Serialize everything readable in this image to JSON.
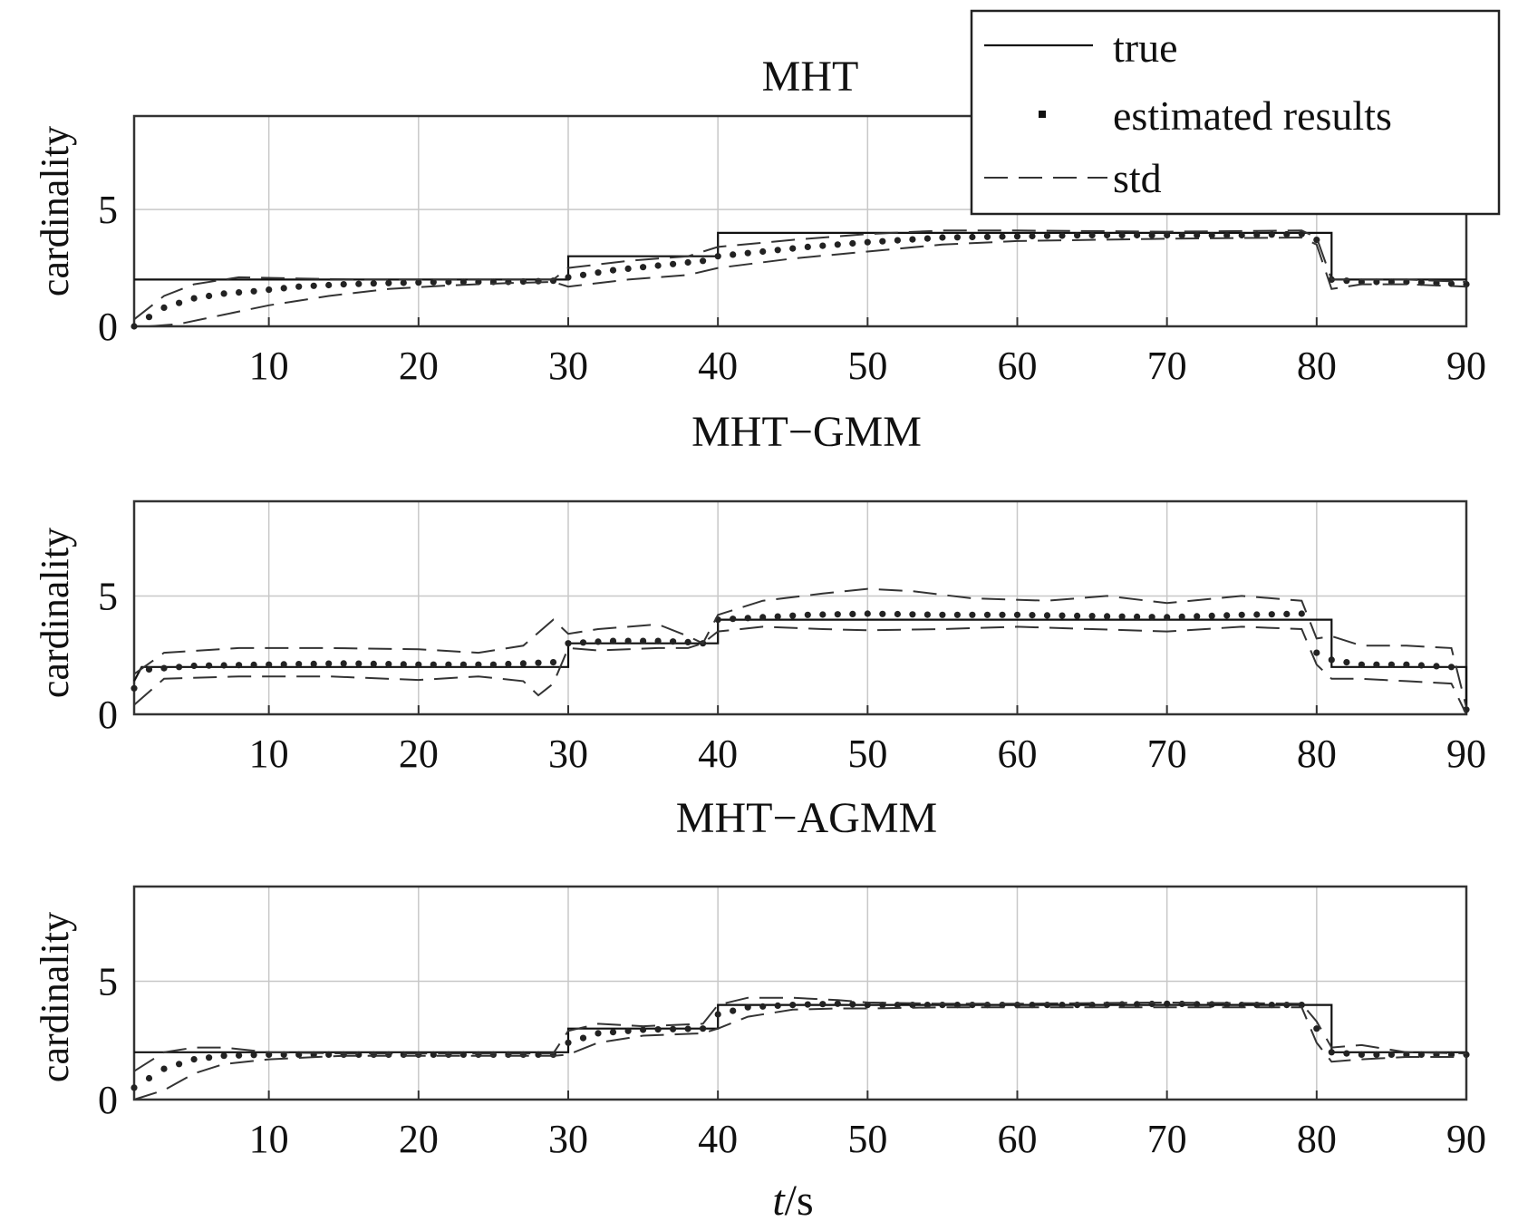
{
  "legend": {
    "items": [
      {
        "label": "true",
        "style": "solid"
      },
      {
        "label": "estimated results",
        "style": "dotted"
      },
      {
        "label": "std",
        "style": "dashed"
      }
    ]
  },
  "colors": {
    "line": "#111111",
    "grid": "#c8c8c8",
    "background": "#ffffff"
  },
  "chart_data": [
    {
      "type": "line",
      "title": "MHT",
      "ylabel": "cardinality",
      "xlabel": "",
      "xlim": [
        1,
        90
      ],
      "ylim": [
        0,
        9
      ],
      "xticks": [
        10,
        20,
        30,
        40,
        50,
        60,
        70,
        80,
        90
      ],
      "yticks": [
        0,
        5
      ],
      "grid": true,
      "series": [
        {
          "name": "true",
          "style": "solid",
          "x": [
            1,
            30,
            30,
            40,
            40,
            81,
            81,
            90
          ],
          "y": [
            2,
            2,
            3,
            3,
            4,
            4,
            2,
            2
          ]
        },
        {
          "name": "estimated results",
          "style": "dotted",
          "x": [
            1,
            3,
            5,
            7,
            9,
            12,
            15,
            18,
            22,
            26,
            29,
            30,
            33,
            36,
            39,
            40,
            43,
            46,
            50,
            55,
            60,
            65,
            70,
            75,
            79,
            80,
            81,
            83,
            86,
            90
          ],
          "y": [
            0,
            0.8,
            1.2,
            1.4,
            1.5,
            1.7,
            1.8,
            1.85,
            1.9,
            1.9,
            1.95,
            2.1,
            2.4,
            2.6,
            2.8,
            3.0,
            3.2,
            3.4,
            3.6,
            3.8,
            3.85,
            3.9,
            3.9,
            3.9,
            3.95,
            3.7,
            2.0,
            1.9,
            1.9,
            1.8
          ]
        },
        {
          "name": "std upper",
          "style": "dashed",
          "x": [
            1,
            3,
            5,
            8,
            12,
            16,
            20,
            25,
            29,
            30,
            34,
            38,
            40,
            45,
            50,
            55,
            60,
            70,
            79,
            80,
            81,
            83,
            86,
            90
          ],
          "y": [
            0.3,
            1.3,
            1.8,
            2.1,
            2.05,
            2.0,
            2.0,
            2.0,
            2.0,
            2.5,
            2.8,
            3.0,
            3.4,
            3.7,
            3.95,
            4.1,
            4.1,
            4.05,
            4.1,
            3.8,
            2.0,
            2.0,
            2.0,
            1.9
          ]
        },
        {
          "name": "std lower",
          "style": "dashed",
          "x": [
            2,
            4,
            7,
            10,
            14,
            18,
            22,
            26,
            29,
            30,
            34,
            38,
            40,
            45,
            50,
            55,
            60,
            70,
            79,
            80,
            81,
            83,
            86,
            90
          ],
          "y": [
            0,
            0.1,
            0.5,
            0.9,
            1.3,
            1.6,
            1.75,
            1.85,
            1.9,
            1.7,
            2.0,
            2.2,
            2.5,
            2.9,
            3.2,
            3.5,
            3.65,
            3.75,
            3.8,
            3.5,
            1.6,
            1.8,
            1.8,
            1.7
          ]
        }
      ]
    },
    {
      "type": "line",
      "title": "MHT−GMM",
      "ylabel": "cardinality",
      "xlabel": "",
      "xlim": [
        1,
        90
      ],
      "ylim": [
        0,
        9
      ],
      "xticks": [
        10,
        20,
        30,
        40,
        50,
        60,
        70,
        80,
        90
      ],
      "yticks": [
        0,
        5
      ],
      "grid": true,
      "series": [
        {
          "name": "true",
          "style": "solid",
          "x": [
            1,
            1.5,
            30,
            30,
            40,
            40,
            81,
            81,
            90,
            90
          ],
          "y": [
            1.4,
            2,
            2,
            3,
            3,
            4,
            4,
            2,
            2,
            0
          ]
        },
        {
          "name": "estimated results",
          "style": "dotted",
          "x": [
            1,
            2,
            5,
            10,
            15,
            20,
            25,
            29,
            30,
            33,
            36,
            38,
            39,
            40,
            43,
            46,
            50,
            55,
            60,
            65,
            70,
            75,
            79,
            80,
            81,
            83,
            86,
            89,
            90
          ],
          "y": [
            1.1,
            1.9,
            2.05,
            2.1,
            2.15,
            2.1,
            2.1,
            2.2,
            3.0,
            3.1,
            3.1,
            3.05,
            3.0,
            4.0,
            4.1,
            4.2,
            4.25,
            4.2,
            4.2,
            4.15,
            4.1,
            4.2,
            4.25,
            2.6,
            2.3,
            2.1,
            2.1,
            2.0,
            0.2
          ]
        },
        {
          "name": "std upper",
          "style": "dashed",
          "x": [
            1,
            3,
            8,
            14,
            20,
            24,
            27,
            29,
            30,
            32,
            36,
            38,
            39,
            40,
            43,
            47,
            50,
            53,
            57,
            62,
            66,
            70,
            75,
            79,
            80,
            81,
            83,
            86,
            89,
            90
          ],
          "y": [
            1.7,
            2.6,
            2.8,
            2.8,
            2.75,
            2.6,
            2.9,
            4.0,
            3.4,
            3.6,
            3.8,
            3.3,
            3.0,
            4.2,
            4.8,
            5.1,
            5.3,
            5.2,
            4.9,
            4.8,
            5.0,
            4.7,
            5.0,
            4.8,
            3.2,
            3.3,
            2.9,
            2.9,
            2.8,
            0.3
          ]
        },
        {
          "name": "std lower",
          "style": "dashed",
          "x": [
            1,
            3,
            8,
            14,
            20,
            24,
            27,
            28,
            29,
            30,
            32,
            36,
            38,
            39,
            40,
            43,
            47,
            50,
            55,
            60,
            65,
            70,
            75,
            79,
            80,
            81,
            83,
            86,
            89,
            90
          ],
          "y": [
            0.4,
            1.5,
            1.6,
            1.6,
            1.45,
            1.6,
            1.4,
            0.8,
            1.3,
            2.8,
            2.7,
            2.8,
            2.8,
            3.0,
            3.5,
            3.7,
            3.6,
            3.55,
            3.6,
            3.7,
            3.6,
            3.5,
            3.7,
            3.6,
            2.1,
            1.5,
            1.5,
            1.4,
            1.3,
            0
          ]
        }
      ]
    },
    {
      "type": "line",
      "title": "MHT−AGMM",
      "ylabel": "cardinality",
      "xlabel": "t/s",
      "xlim": [
        1,
        90
      ],
      "ylim": [
        0,
        9
      ],
      "xticks": [
        10,
        20,
        30,
        40,
        50,
        60,
        70,
        80,
        90
      ],
      "yticks": [
        0,
        5
      ],
      "grid": true,
      "series": [
        {
          "name": "true",
          "style": "solid",
          "x": [
            1,
            30,
            30,
            40,
            40,
            81,
            81,
            90
          ],
          "y": [
            2,
            2,
            3,
            3,
            4,
            4,
            2,
            2
          ]
        },
        {
          "name": "estimated results",
          "style": "dotted",
          "x": [
            1,
            3,
            5,
            7,
            10,
            15,
            20,
            25,
            29,
            30,
            32,
            35,
            39,
            40,
            42,
            45,
            48,
            50,
            55,
            60,
            65,
            70,
            75,
            79,
            80,
            81,
            83,
            86,
            90
          ],
          "y": [
            0.5,
            1.3,
            1.7,
            1.85,
            1.9,
            1.9,
            1.9,
            1.9,
            1.9,
            2.4,
            2.8,
            2.95,
            3.0,
            3.6,
            3.9,
            4.0,
            4.05,
            4.0,
            4.0,
            4.0,
            4.0,
            4.05,
            4.0,
            4.0,
            3.0,
            2.0,
            1.9,
            1.9,
            1.9
          ]
        },
        {
          "name": "std upper",
          "style": "dashed",
          "x": [
            1,
            3,
            5,
            7,
            10,
            15,
            20,
            25,
            29,
            30,
            32,
            35,
            39,
            40,
            42,
            45,
            48,
            50,
            55,
            60,
            70,
            79,
            80,
            81,
            83,
            86,
            90
          ],
          "y": [
            1.2,
            2.0,
            2.2,
            2.2,
            2.0,
            1.95,
            1.95,
            1.95,
            1.95,
            2.9,
            3.2,
            3.1,
            3.2,
            4.0,
            4.3,
            4.3,
            4.2,
            4.1,
            4.05,
            4.05,
            4.1,
            4.05,
            3.3,
            2.2,
            2.3,
            2.0,
            1.95
          ]
        },
        {
          "name": "std lower",
          "style": "dashed",
          "x": [
            1,
            3,
            5,
            7,
            10,
            15,
            20,
            25,
            29,
            30,
            32,
            35,
            39,
            40,
            42,
            45,
            48,
            50,
            55,
            60,
            70,
            79,
            80,
            81,
            83,
            86,
            90
          ],
          "y": [
            0,
            0.4,
            1.1,
            1.5,
            1.7,
            1.85,
            1.85,
            1.85,
            1.85,
            1.9,
            2.4,
            2.7,
            2.8,
            3.0,
            3.5,
            3.8,
            3.85,
            3.85,
            3.9,
            3.9,
            3.9,
            3.9,
            2.4,
            1.6,
            1.7,
            1.8,
            1.8
          ]
        }
      ]
    }
  ]
}
